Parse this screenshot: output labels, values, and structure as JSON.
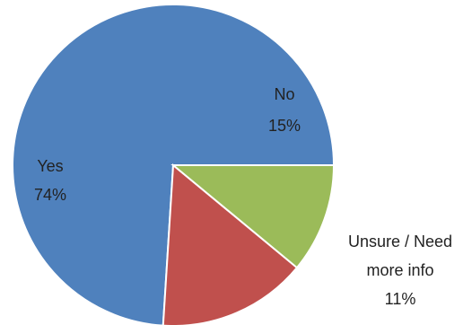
{
  "chart_data": {
    "type": "pie",
    "slices": [
      {
        "name": "Yes",
        "value": 74,
        "pct_label": "74%",
        "color": "#4f81bd"
      },
      {
        "name": "No",
        "value": 15,
        "pct_label": "15%",
        "color": "#c0504d"
      },
      {
        "name": "Unsure / Need more info",
        "value": 11,
        "pct_label": "11%",
        "color": "#9bbb59",
        "label_lines": [
          "Unsure / Need",
          "more info"
        ]
      }
    ],
    "start_angle_deg": 90,
    "direction": "counterclockwise",
    "legend": "none"
  }
}
